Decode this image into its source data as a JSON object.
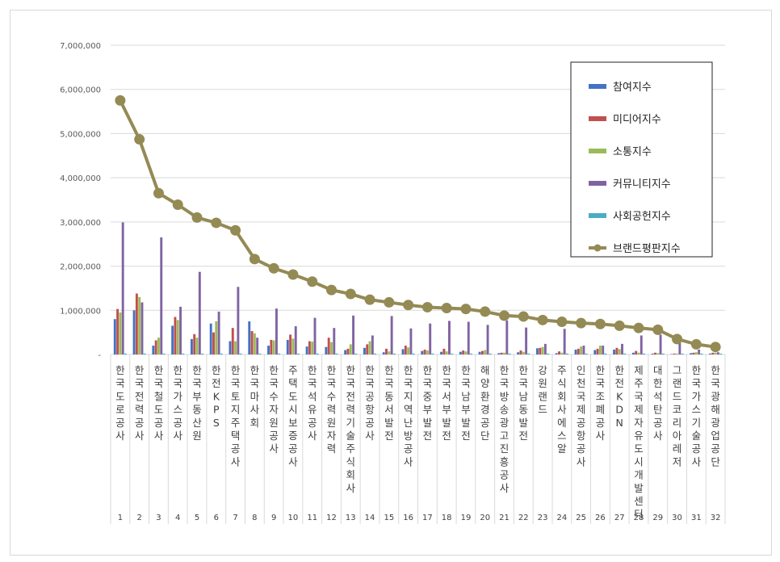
{
  "chart_data": {
    "type": "bar",
    "title": "",
    "xlabel": "",
    "ylabel": "",
    "ylim": [
      0,
      7000000
    ],
    "yticks": [
      "7,000,000",
      "6,000,000",
      "5,000,000",
      "4,000,000",
      "3,000,000",
      "2,000,000",
      "1,000,000",
      "-"
    ],
    "grid": true,
    "legend_position": "top-right",
    "numbers": [
      "1",
      "2",
      "3",
      "4",
      "5",
      "6",
      "7",
      "8",
      "9",
      "10",
      "11",
      "12",
      "13",
      "14",
      "15",
      "16",
      "17",
      "18",
      "19",
      "20",
      "21",
      "22",
      "23",
      "24",
      "25",
      "26",
      "27",
      "28",
      "29",
      "30",
      "31",
      "32"
    ],
    "categories": [
      "한국도로공사",
      "한국전력공사",
      "한국철도공사",
      "한국가스공사",
      "한국부동산원",
      "한전KPS",
      "한국토지주택공사",
      "한국마사회",
      "한국수자원공사",
      "주택도시보증공사",
      "한국석유공사",
      "한국수력원자력",
      "한국전력기술주식회사",
      "한국공항공사",
      "한국동서발전",
      "한국지역난방공사",
      "한국중부발전",
      "한국서부발전",
      "한국남부발전",
      "해양환경공단",
      "한국방송광고진흥공사",
      "한국남동발전",
      "강원랜드",
      "주식회사에스알",
      "인천국제공항공사",
      "한국조폐공사",
      "한전KDN",
      "제주국제자유도시개발센터",
      "대한석탄공사",
      "그랜드코리아레저",
      "한국가스기술공사",
      "한국광해광업공단"
    ],
    "series": [
      {
        "name": "참여지수",
        "color": "#4472C4",
        "values": [
          800000,
          1000000,
          200000,
          650000,
          350000,
          700000,
          300000,
          750000,
          200000,
          330000,
          180000,
          170000,
          100000,
          150000,
          50000,
          120000,
          80000,
          60000,
          60000,
          60000,
          30000,
          50000,
          140000,
          30000,
          110000,
          100000,
          110000,
          40000,
          20000,
          10000,
          30000,
          20000
        ]
      },
      {
        "name": "미디어지수",
        "color": "#C0504D",
        "values": [
          1030000,
          1380000,
          320000,
          850000,
          460000,
          500000,
          600000,
          530000,
          330000,
          450000,
          300000,
          380000,
          130000,
          230000,
          130000,
          200000,
          110000,
          130000,
          90000,
          80000,
          40000,
          90000,
          150000,
          70000,
          130000,
          130000,
          150000,
          80000,
          40000,
          20000,
          40000,
          40000
        ]
      },
      {
        "name": "소통지수",
        "color": "#9BBB59",
        "values": [
          950000,
          1300000,
          380000,
          780000,
          380000,
          750000,
          300000,
          480000,
          320000,
          360000,
          290000,
          280000,
          230000,
          300000,
          70000,
          160000,
          90000,
          70000,
          70000,
          100000,
          40000,
          60000,
          170000,
          40000,
          180000,
          200000,
          120000,
          40000,
          30000,
          20000,
          50000,
          40000
        ]
      },
      {
        "name": "커뮤니티지수",
        "color": "#8064A2",
        "values": [
          2990000,
          1180000,
          2650000,
          1080000,
          1870000,
          970000,
          1530000,
          380000,
          1040000,
          640000,
          830000,
          600000,
          880000,
          430000,
          870000,
          590000,
          700000,
          760000,
          740000,
          670000,
          770000,
          610000,
          240000,
          580000,
          200000,
          200000,
          240000,
          430000,
          450000,
          280000,
          110000,
          50000
        ]
      },
      {
        "name": "사회공헌지수",
        "color": "#4BACC6",
        "values": [
          20000,
          20000,
          20000,
          20000,
          20000,
          20000,
          20000,
          20000,
          20000,
          20000,
          20000,
          20000,
          20000,
          20000,
          20000,
          20000,
          20000,
          20000,
          20000,
          20000,
          20000,
          20000,
          20000,
          20000,
          20000,
          20000,
          20000,
          20000,
          20000,
          20000,
          20000,
          20000
        ]
      },
      {
        "name": "브랜드평판지수",
        "color": "#948A54",
        "type": "line",
        "values": [
          5750000,
          4870000,
          3650000,
          3390000,
          3100000,
          2980000,
          2810000,
          2160000,
          1950000,
          1810000,
          1650000,
          1460000,
          1370000,
          1240000,
          1180000,
          1120000,
          1070000,
          1050000,
          1030000,
          970000,
          880000,
          860000,
          780000,
          740000,
          710000,
          690000,
          650000,
          600000,
          560000,
          350000,
          230000,
          170000
        ]
      }
    ]
  }
}
